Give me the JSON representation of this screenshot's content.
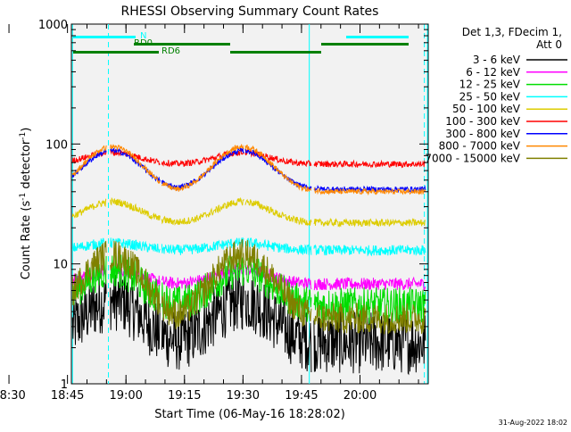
{
  "chart_data": {
    "type": "line",
    "title": "RHESSI Observing Summary Count Rates",
    "xlabel": "Start Time (06-May-16 18:28:02)",
    "ylabel": "Count Rate (s⁻¹ detector⁻¹)",
    "ylabel_parts": {
      "main": "Count Rate (s",
      "sup1": "-1",
      "mid": " detector",
      "sup2": "-1",
      "end": ")"
    },
    "y_scale": "log",
    "ylim": [
      1,
      1000
    ],
    "xlim_minutes": [
      18.0,
      109.5
    ],
    "x_start_time": "18:28:02",
    "x_ticks": [
      {
        "label": "18:30",
        "minute": 2
      },
      {
        "label": "18:45",
        "minute": 17
      },
      {
        "label": "19:00",
        "minute": 32
      },
      {
        "label": "19:15",
        "minute": 47
      },
      {
        "label": "19:30",
        "minute": 62
      },
      {
        "label": "19:45",
        "minute": 77
      },
      {
        "label": "20:00",
        "minute": 92
      }
    ],
    "y_ticks": [
      {
        "label": "1",
        "value": 1
      },
      {
        "label": "10",
        "value": 10
      },
      {
        "label": "100",
        "value": 100
      },
      {
        "label": "1000",
        "value": 1000
      }
    ],
    "legend": {
      "header_line1": "Det 1,3, FDecim 1,",
      "header_line2": "Att 0",
      "placement": "right"
    },
    "series": [
      {
        "name": "3 - 6 keV",
        "color": "#000000",
        "base": 2.2,
        "peak": 5,
        "noise": 0.6
      },
      {
        "name": "6 - 12 keV",
        "color": "#ff00ff",
        "base": 6.8,
        "peak": 9,
        "noise": 0.12
      },
      {
        "name": "12 - 25 keV",
        "color": "#00dd00",
        "base": 4.5,
        "peak": 9,
        "noise": 0.35
      },
      {
        "name": "25 - 50 keV",
        "color": "#00ffff",
        "base": 13,
        "peak": 15,
        "noise": 0.1
      },
      {
        "name": "50 - 100 keV",
        "color": "#ddcc00",
        "base": 22,
        "peak": 33,
        "noise": 0.07
      },
      {
        "name": "100 - 300 keV",
        "color": "#ff0000",
        "base": 68,
        "peak": 85,
        "noise": 0.06
      },
      {
        "name": "300 - 800 keV",
        "color": "#0000ff",
        "base": 42,
        "peak": 88,
        "noise": 0.05
      },
      {
        "name": "800 - 7000 keV",
        "color": "#ff8800",
        "base": 40,
        "peak": 95,
        "noise": 0.05
      },
      {
        "name": "7000 - 15000 keV",
        "color": "#808000",
        "base": 3.5,
        "peak": 12,
        "noise": 0.3
      }
    ],
    "flags": [
      {
        "label": "N",
        "color": "#00ffff"
      },
      {
        "label": "RD0",
        "color": "#008000"
      },
      {
        "label": "RD6",
        "color": "#008000"
      }
    ]
  },
  "footer": {
    "date_stamp": "31-Aug-2022 18:02"
  }
}
